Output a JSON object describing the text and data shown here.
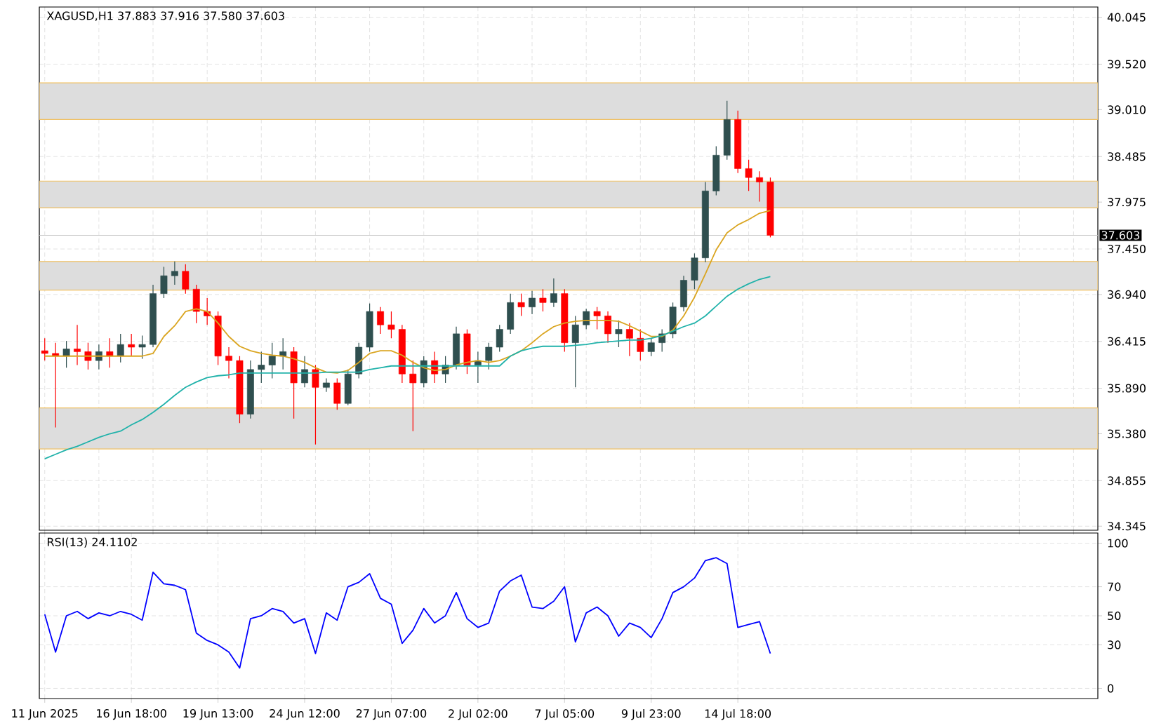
{
  "chart_data": [
    {
      "type": "candlestick",
      "title": "XAGUSD,H1  37.883 37.916 37.580 37.603",
      "categories": [
        null,
        null,
        null,
        null,
        null,
        null,
        null,
        null,
        null,
        null,
        null,
        null,
        null,
        null,
        null,
        null,
        null,
        null,
        null,
        null,
        null,
        null,
        null,
        null,
        null,
        null,
        null,
        null,
        null,
        null,
        null,
        null,
        null,
        null,
        null,
        null,
        null,
        null,
        null,
        null,
        null,
        null,
        null,
        null,
        null,
        null,
        null,
        null,
        null,
        null,
        null,
        null,
        null,
        null,
        null,
        null,
        null,
        null,
        null,
        null,
        null,
        null,
        null,
        null,
        null,
        null,
        null,
        null
      ],
      "series": [
        {
          "type": "candlestick",
          "ohlc": [
            [
              36.31,
              36.45,
              36.2,
              36.28
            ],
            [
              36.28,
              36.4,
              35.45,
              36.25
            ],
            [
              36.25,
              36.42,
              36.12,
              36.33
            ],
            [
              36.33,
              36.6,
              36.15,
              36.3
            ],
            [
              36.3,
              36.4,
              36.1,
              36.2
            ],
            [
              36.2,
              36.38,
              36.1,
              36.3
            ],
            [
              36.3,
              36.45,
              36.12,
              36.25
            ],
            [
              36.25,
              36.5,
              36.18,
              36.38
            ],
            [
              36.38,
              36.5,
              36.25,
              36.35
            ],
            [
              36.35,
              36.48,
              36.22,
              36.38
            ],
            [
              36.38,
              37.05,
              36.35,
              36.95
            ],
            [
              36.95,
              37.25,
              36.9,
              37.15
            ],
            [
              37.15,
              37.31,
              37.05,
              37.2
            ],
            [
              37.2,
              37.28,
              36.95,
              37.0
            ],
            [
              37.0,
              37.05,
              36.62,
              36.75
            ],
            [
              36.75,
              36.9,
              36.6,
              36.7
            ],
            [
              36.7,
              36.75,
              36.15,
              36.25
            ],
            [
              36.25,
              36.35,
              36.0,
              36.2
            ],
            [
              36.2,
              36.25,
              35.5,
              35.6
            ],
            [
              35.6,
              36.2,
              35.55,
              36.1
            ],
            [
              36.1,
              36.3,
              35.95,
              36.15
            ],
            [
              36.15,
              36.4,
              36.0,
              36.25
            ],
            [
              36.25,
              36.45,
              36.1,
              36.3
            ],
            [
              36.3,
              36.35,
              35.55,
              35.95
            ],
            [
              35.95,
              36.25,
              35.9,
              36.1
            ],
            [
              36.1,
              36.15,
              35.26,
              35.9
            ],
            [
              35.9,
              36.0,
              35.85,
              35.95
            ],
            [
              35.95,
              36.0,
              35.65,
              35.72
            ],
            [
              35.72,
              36.1,
              35.7,
              36.05
            ],
            [
              36.05,
              36.4,
              36.0,
              36.35
            ],
            [
              36.35,
              36.84,
              36.3,
              36.75
            ],
            [
              36.75,
              36.8,
              36.5,
              36.6
            ],
            [
              36.6,
              36.75,
              36.45,
              36.55
            ],
            [
              36.55,
              36.6,
              35.95,
              36.05
            ],
            [
              36.05,
              36.2,
              35.41,
              35.95
            ],
            [
              35.95,
              36.25,
              35.9,
              36.2
            ],
            [
              36.2,
              36.3,
              35.95,
              36.05
            ],
            [
              36.05,
              36.25,
              35.95,
              36.15
            ],
            [
              36.15,
              36.58,
              36.1,
              36.5
            ],
            [
              36.5,
              36.55,
              36.05,
              36.15
            ],
            [
              36.15,
              36.3,
              35.95,
              36.2
            ],
            [
              36.2,
              36.4,
              36.1,
              36.35
            ],
            [
              36.35,
              36.6,
              36.3,
              36.55
            ],
            [
              36.55,
              36.95,
              36.5,
              36.85
            ],
            [
              36.85,
              36.95,
              36.7,
              36.8
            ],
            [
              36.8,
              36.98,
              36.72,
              36.9
            ],
            [
              36.9,
              37.0,
              36.75,
              36.85
            ],
            [
              36.85,
              37.12,
              36.8,
              36.95
            ],
            [
              36.95,
              37.0,
              36.3,
              36.4
            ],
            [
              36.4,
              36.7,
              35.9,
              36.6
            ],
            [
              36.6,
              36.78,
              36.55,
              36.75
            ],
            [
              36.75,
              36.8,
              36.55,
              36.7
            ],
            [
              36.7,
              36.75,
              36.4,
              36.5
            ],
            [
              36.5,
              36.65,
              36.35,
              36.55
            ],
            [
              36.55,
              36.62,
              36.25,
              36.45
            ],
            [
              36.45,
              36.55,
              36.2,
              36.3
            ],
            [
              36.3,
              36.45,
              36.25,
              36.4
            ],
            [
              36.4,
              36.55,
              36.3,
              36.5
            ],
            [
              36.5,
              36.85,
              36.45,
              36.8
            ],
            [
              36.8,
              37.15,
              36.75,
              37.1
            ],
            [
              37.1,
              37.4,
              37.0,
              37.35
            ],
            [
              37.35,
              38.2,
              37.3,
              38.1
            ],
            [
              38.1,
              38.6,
              38.05,
              38.5
            ],
            [
              38.5,
              39.11,
              38.45,
              38.9
            ],
            [
              38.9,
              39.0,
              38.3,
              38.35
            ],
            [
              38.35,
              38.45,
              38.1,
              38.25
            ],
            [
              38.25,
              38.32,
              37.98,
              38.2
            ],
            [
              38.2,
              38.25,
              37.58,
              37.603
            ]
          ],
          "colors": [
            "#ff0000",
            "#ff0000",
            "#2f4f4f",
            "#ff0000",
            "#ff0000",
            "#2f4f4f",
            "#ff0000",
            "#2f4f4f",
            "#ff0000",
            "#2f4f4f",
            "#2f4f4f",
            "#2f4f4f",
            "#2f4f4f",
            "#ff0000",
            "#ff0000",
            "#ff0000",
            "#ff0000",
            "#ff0000",
            "#ff0000",
            "#2f4f4f",
            "#2f4f4f",
            "#2f4f4f",
            "#2f4f4f",
            "#ff0000",
            "#2f4f4f",
            "#ff0000",
            "#2f4f4f",
            "#ff0000",
            "#2f4f4f",
            "#2f4f4f",
            "#2f4f4f",
            "#ff0000",
            "#ff0000",
            "#ff0000",
            "#ff0000",
            "#2f4f4f",
            "#ff0000",
            "#2f4f4f",
            "#2f4f4f",
            "#ff0000",
            "#2f4f4f",
            "#2f4f4f",
            "#2f4f4f",
            "#2f4f4f",
            "#ff0000",
            "#2f4f4f",
            "#ff0000",
            "#2f4f4f",
            "#ff0000",
            "#2f4f4f",
            "#2f4f4f",
            "#ff0000",
            "#ff0000",
            "#2f4f4f",
            "#ff0000",
            "#ff0000",
            "#2f4f4f",
            "#2f4f4f",
            "#2f4f4f",
            "#2f4f4f",
            "#2f4f4f",
            "#2f4f4f",
            "#2f4f4f",
            "#2f4f4f",
            "#ff0000",
            "#ff0000",
            "#ff0000",
            "#ff0000"
          ]
        },
        {
          "type": "line",
          "color": "#daa520",
          "values": [
            36.25,
            36.25,
            36.25,
            36.25,
            36.25,
            36.25,
            36.25,
            36.25,
            36.25,
            36.25,
            36.28,
            36.47,
            36.59,
            36.75,
            36.78,
            36.75,
            36.62,
            36.47,
            36.36,
            36.31,
            36.28,
            36.26,
            36.25,
            36.22,
            36.18,
            36.12,
            36.07,
            36.06,
            36.09,
            36.18,
            36.28,
            36.31,
            36.31,
            36.26,
            36.18,
            36.12,
            36.09,
            36.1,
            36.15,
            36.18,
            36.2,
            36.18,
            36.2,
            36.25,
            36.31,
            36.4,
            36.5,
            36.58,
            36.62,
            36.64,
            36.65,
            36.65,
            36.65,
            36.64,
            36.59,
            36.53,
            36.47,
            36.47,
            36.54,
            36.7,
            36.91,
            37.17,
            37.44,
            37.63,
            37.72,
            37.78,
            37.85,
            37.88
          ]
        },
        {
          "type": "line",
          "color": "#20b2aa",
          "values": [
            35.1,
            35.15,
            35.2,
            35.24,
            35.29,
            35.34,
            35.38,
            35.41,
            35.48,
            35.54,
            35.62,
            35.71,
            35.81,
            35.9,
            35.96,
            36.01,
            36.03,
            36.04,
            36.06,
            36.06,
            36.06,
            36.06,
            36.06,
            36.06,
            36.06,
            36.06,
            36.07,
            36.07,
            36.07,
            36.07,
            36.1,
            36.12,
            36.14,
            36.14,
            36.14,
            36.14,
            36.14,
            36.14,
            36.14,
            36.14,
            36.14,
            36.14,
            36.14,
            36.25,
            36.31,
            36.34,
            36.36,
            36.36,
            36.36,
            36.37,
            36.38,
            36.4,
            36.41,
            36.42,
            36.43,
            36.43,
            36.45,
            36.48,
            36.53,
            36.58,
            36.62,
            36.7,
            36.81,
            36.92,
            37.0,
            37.06,
            37.11,
            37.14
          ]
        }
      ],
      "ylim": [
        34.3,
        40.16
      ],
      "yticks": [
        34.345,
        34.855,
        {
          "value": 35.38,
          "label": "35.380"
        },
        {
          "value": 35.89,
          "label": "35.890"
        },
        36.415,
        {
          "value": 36.94,
          "label": "36.940"
        },
        {
          "value": 37.45,
          "label": "37.450"
        },
        37.975,
        38.485,
        {
          "value": 39.01,
          "label": "39.010"
        },
        {
          "value": 39.52,
          "label": "39.520"
        },
        40.045
      ],
      "bands": [
        {
          "axis": "y",
          "from": 38.9,
          "to": 39.31,
          "color": "#dddddd"
        },
        {
          "axis": "y",
          "from": 37.91,
          "to": 38.21,
          "color": "#dddddd"
        },
        {
          "axis": "y",
          "from": 36.99,
          "to": 37.31,
          "color": "#dddddd"
        },
        {
          "axis": "y",
          "from": 35.21,
          "to": 35.67,
          "color": "#dddddd"
        }
      ],
      "ref_lines": [
        {
          "axis": "y",
          "value": 37.603,
          "label": "37.603",
          "color": "#c8c8c8"
        }
      ],
      "grid": true,
      "tick_labels": "y"
    },
    {
      "type": "line",
      "title": "RSI(13) 24.1102",
      "categories": [
        "11 Jun 2025",
        null,
        null,
        null,
        null,
        null,
        null,
        null,
        "16 Jun 18:00",
        null,
        null,
        null,
        null,
        null,
        null,
        null,
        "19 Jun 13:00",
        null,
        null,
        null,
        null,
        null,
        null,
        null,
        "24 Jun 12:00",
        null,
        null,
        null,
        null,
        null,
        null,
        null,
        "27 Jun 07:00",
        null,
        null,
        null,
        null,
        null,
        null,
        null,
        "2 Jul 02:00",
        null,
        null,
        null,
        null,
        null,
        null,
        null,
        "7 Jul 05:00",
        null,
        null,
        null,
        null,
        null,
        null,
        null,
        "9 Jul 23:00",
        null,
        null,
        null,
        null,
        null,
        null,
        null,
        "14 Jul 18:00",
        null,
        null,
        null
      ],
      "color": "#0000ff",
      "values": [
        51,
        25,
        50,
        53,
        48,
        52,
        50,
        53,
        51,
        47,
        80,
        72,
        71,
        68,
        38,
        33,
        30,
        25,
        14,
        48,
        50,
        55,
        53,
        45,
        48,
        24,
        52,
        47,
        70,
        73,
        79,
        62,
        58,
        31,
        40,
        55,
        45,
        50,
        66,
        48,
        42,
        45,
        67,
        74,
        78,
        56,
        55,
        60,
        70,
        32,
        52,
        56,
        50,
        36,
        45,
        42,
        35,
        48,
        66,
        70,
        76,
        88,
        90,
        86,
        42,
        44,
        46,
        24
      ],
      "ylim": [
        -7,
        107
      ],
      "yticks": [
        0,
        30,
        50,
        70,
        100
      ],
      "grid": true
    }
  ]
}
